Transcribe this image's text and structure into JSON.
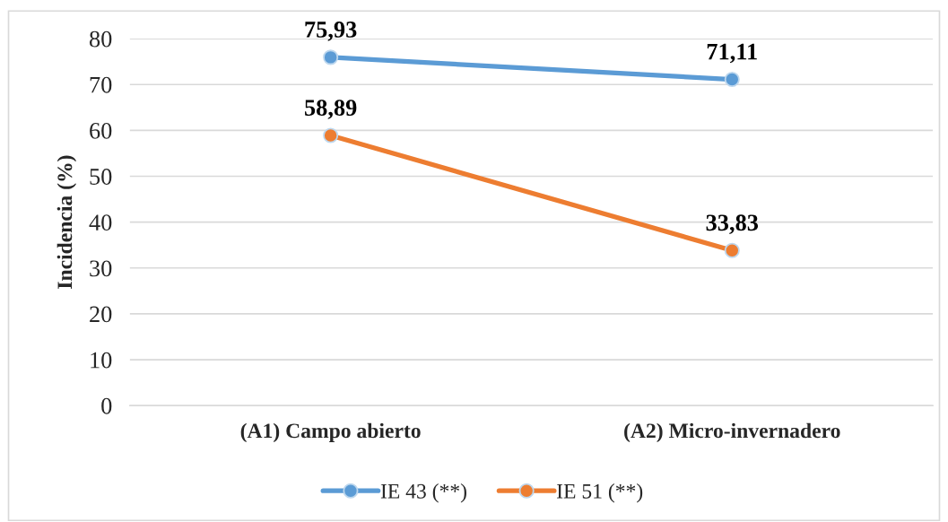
{
  "chart_data": {
    "type": "line",
    "ylabel": "Incidencia (%)",
    "categories": [
      "(A1) Campo abierto",
      "(A2) Micro-invernadero"
    ],
    "series": [
      {
        "name": "IE 43 (**)",
        "color": "#5b9bd5",
        "values": [
          75.93,
          71.11
        ],
        "value_labels": [
          "75,93",
          "71,11"
        ]
      },
      {
        "name": "IE 51 (**)",
        "color": "#ed7d31",
        "values": [
          58.89,
          33.83
        ],
        "value_labels": [
          "58,89",
          "33,83"
        ]
      }
    ],
    "ylim": [
      0,
      80
    ],
    "yticks": [
      0,
      10,
      20,
      30,
      40,
      50,
      60,
      70,
      80
    ],
    "grid": "y",
    "legend": "bottom",
    "marker": "circle",
    "line_style": "solid"
  }
}
